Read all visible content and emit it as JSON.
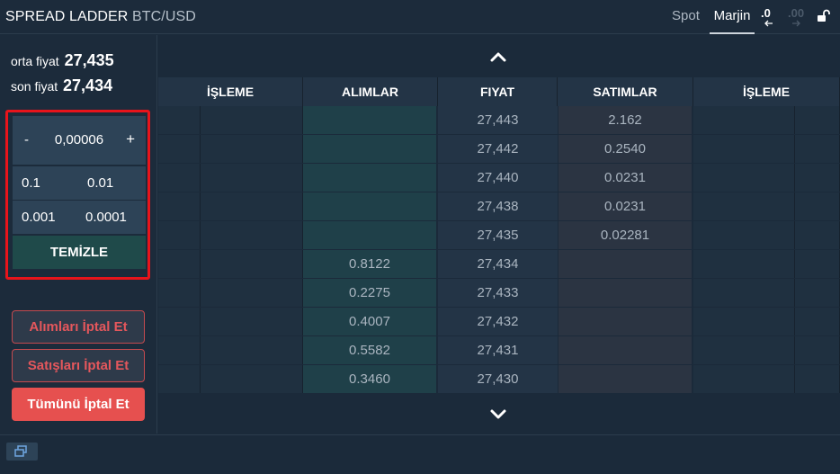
{
  "header": {
    "title": "SPREAD LADDER",
    "pair": "BTC/USD",
    "tabs": {
      "spot": "Spot",
      "margin": "Marjin"
    },
    "precision_less": ".0",
    "precision_more": ".00",
    "icons": [
      "arrow-left-icon",
      "arrow-right-icon",
      "unlock-icon"
    ]
  },
  "prices": {
    "mid_label": "orta fiyat",
    "mid_value": "27,435",
    "last_label": "son fiyat",
    "last_value": "27,434"
  },
  "quantity": {
    "minus": "-",
    "value": "0,00006",
    "plus": "+",
    "presets": [
      "0.1",
      "0.01",
      "0.001",
      "0.0001"
    ],
    "clear": "TEMİZLE"
  },
  "cancel": {
    "buys": "Alımları İptal Et",
    "sells": "Satışları İptal Et",
    "all": "Tümünü İptal Et"
  },
  "ladder": {
    "columns": [
      "İŞLEME",
      "ALIMLAR",
      "FIYAT",
      "SATIMLAR",
      "İŞLEME"
    ],
    "rows": [
      {
        "price": "27,443",
        "bid": "",
        "ask": "2.162"
      },
      {
        "price": "27,442",
        "bid": "",
        "ask": "0.2540"
      },
      {
        "price": "27,440",
        "bid": "",
        "ask": "0.0231"
      },
      {
        "price": "27,438",
        "bid": "",
        "ask": "0.0231"
      },
      {
        "price": "27,435",
        "bid": "",
        "ask": "0.02281"
      },
      {
        "price": "27,434",
        "bid": "0.8122",
        "ask": ""
      },
      {
        "price": "27,433",
        "bid": "0.2275",
        "ask": ""
      },
      {
        "price": "27,432",
        "bid": "0.4007",
        "ask": ""
      },
      {
        "price": "27,431",
        "bid": "0.5582",
        "ask": ""
      },
      {
        "price": "27,430",
        "bid": "0.3460",
        "ask": ""
      }
    ]
  },
  "colors": {
    "background": "#1b2a3a",
    "bid_cell": "#1f4049",
    "ask_cell": "#2b3442",
    "highlight_border": "#e8141b",
    "cancel_red": "#e6504f"
  }
}
